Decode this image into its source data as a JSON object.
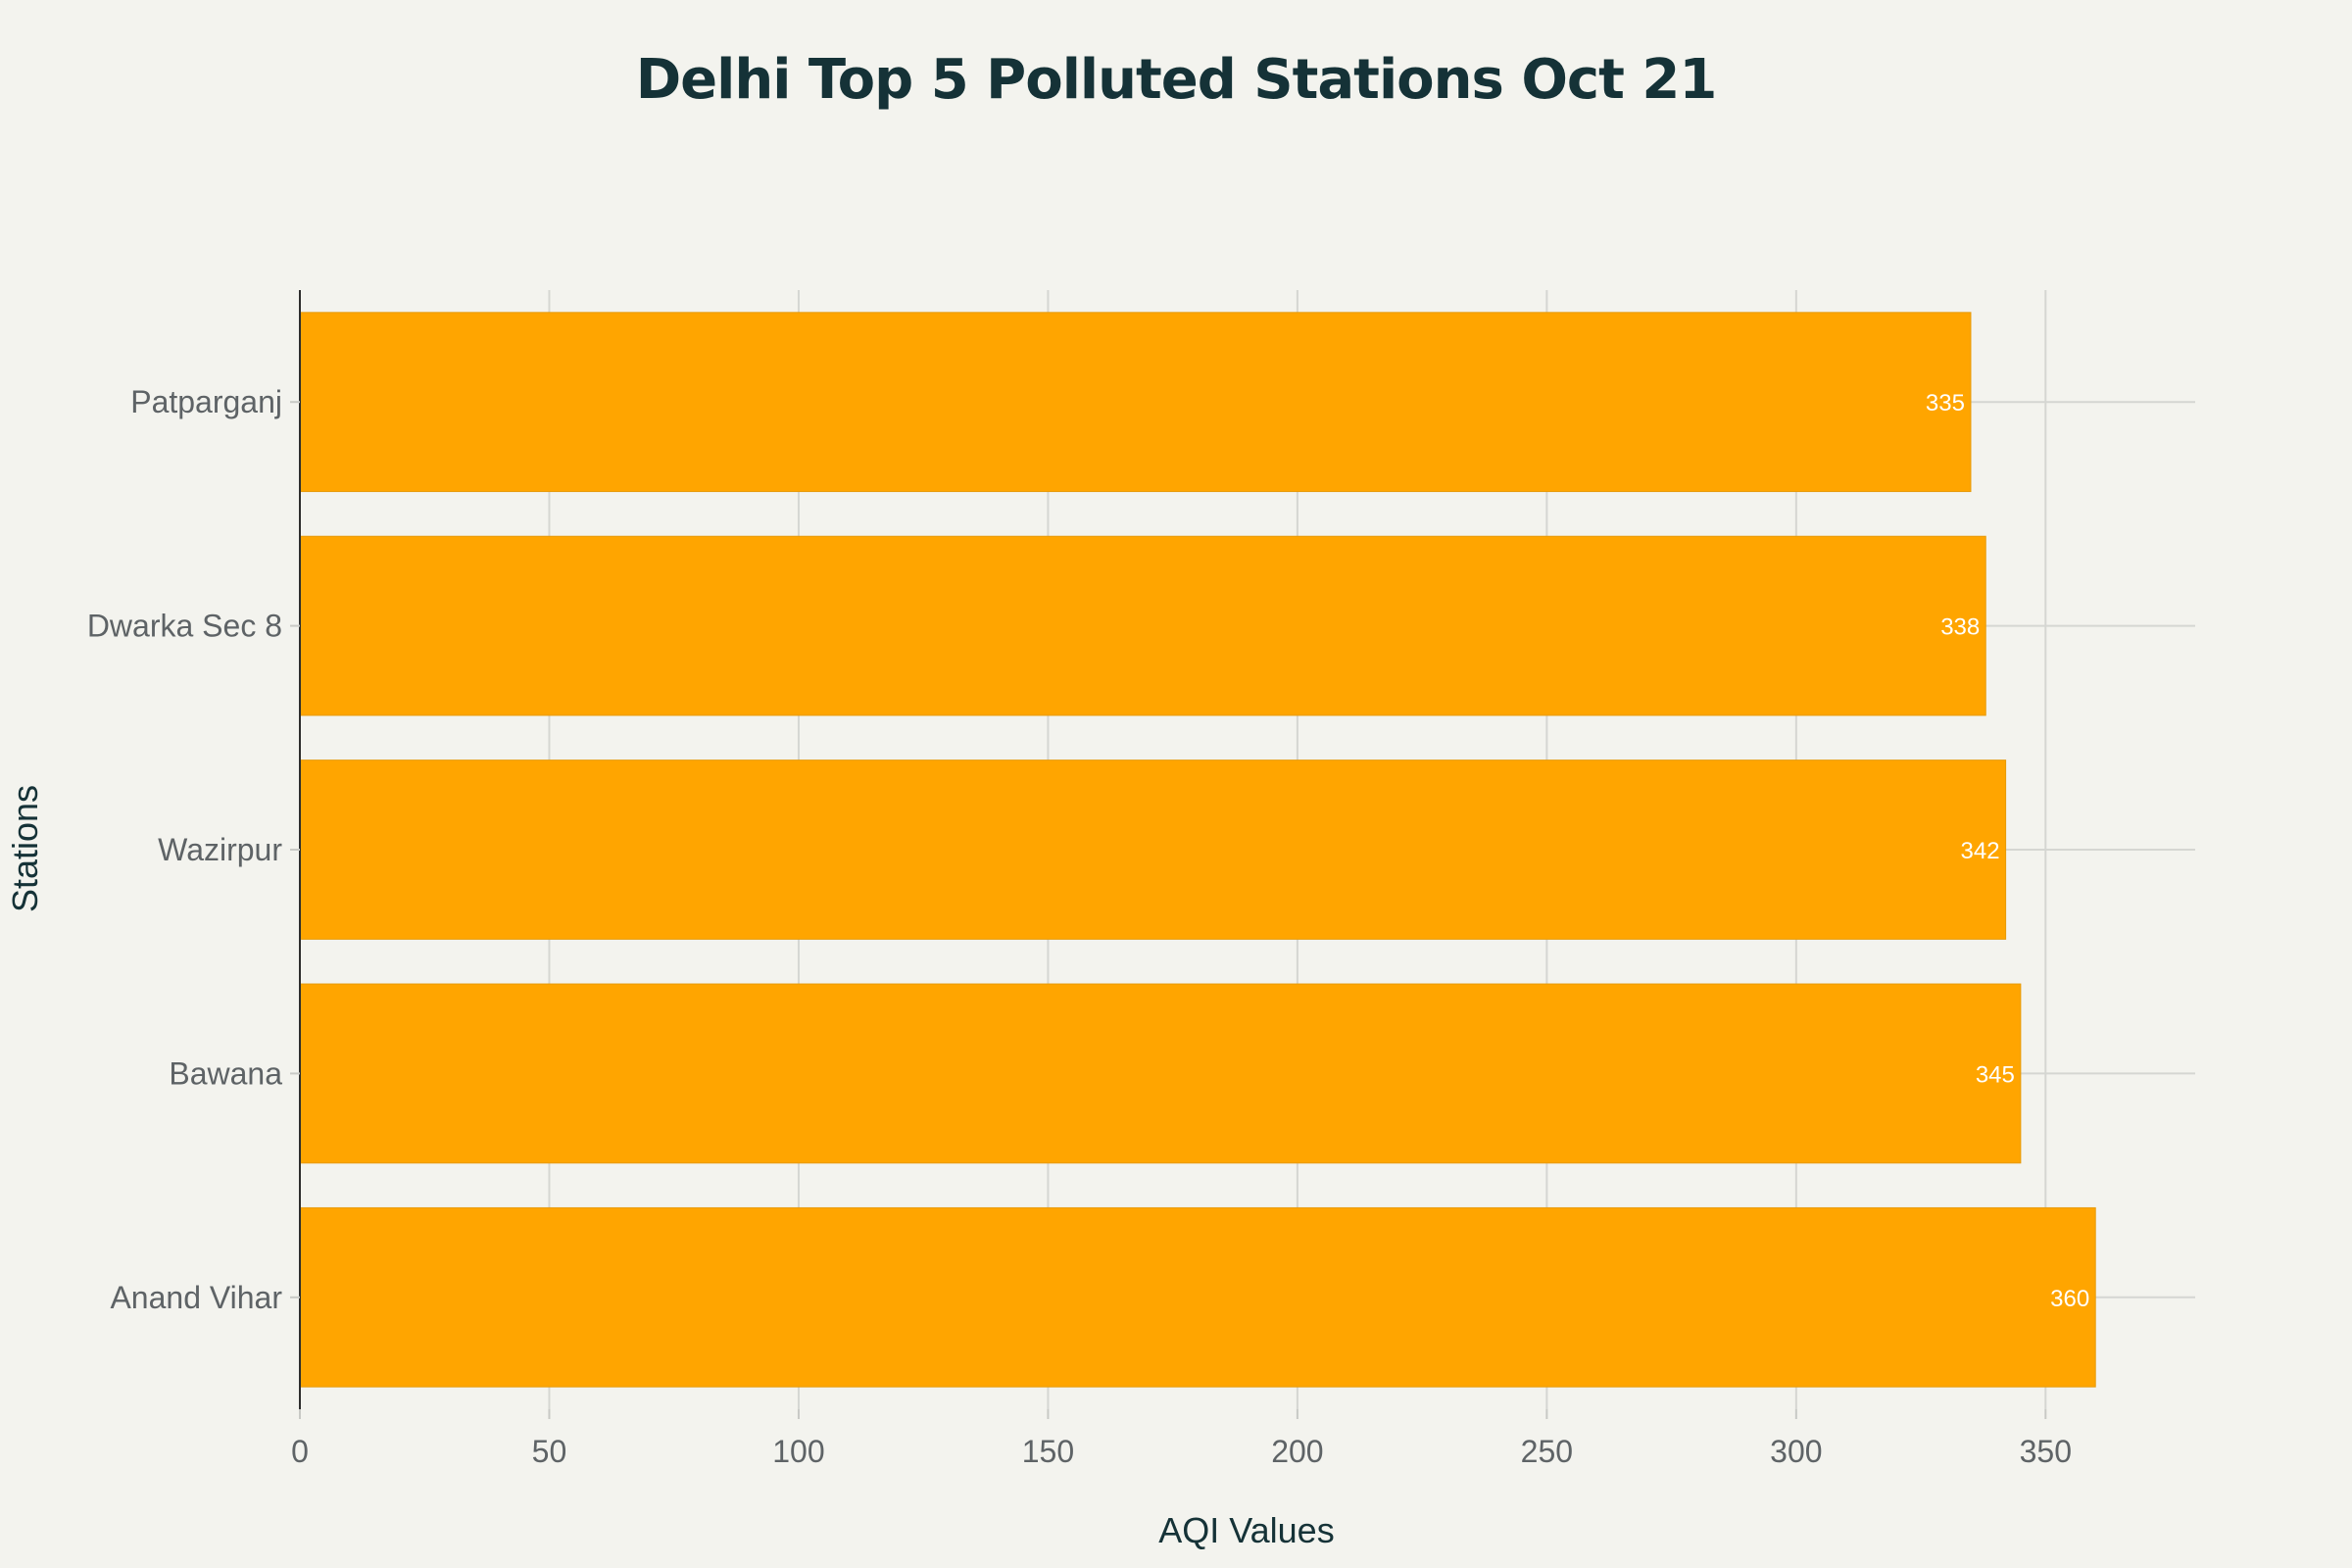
{
  "chart_data": {
    "type": "bar",
    "orientation": "horizontal",
    "title": "Delhi Top 5 Polluted Stations Oct 21",
    "xlabel": "AQI Values",
    "ylabel": "Stations",
    "categories": [
      "Anand Vihar",
      "Bawana",
      "Wazirpur",
      "Dwarka Sec 8",
      "Patparganj"
    ],
    "values": [
      360,
      345,
      342,
      338,
      335
    ],
    "data_labels": [
      "360",
      "345",
      "342",
      "338",
      "335"
    ],
    "xlim": [
      0,
      380
    ],
    "xticks": [
      0,
      50,
      100,
      150,
      200,
      250,
      300,
      350
    ],
    "xtick_labels": [
      "0",
      "50",
      "100",
      "150",
      "200",
      "250",
      "300",
      "350"
    ],
    "grid": true,
    "legend": "none",
    "bar_color": "#FFA500",
    "background_color": "#F3F3EE",
    "title_color": "#153237",
    "label_color": "#5E6366",
    "data_label_color": "#FFFFFF"
  }
}
